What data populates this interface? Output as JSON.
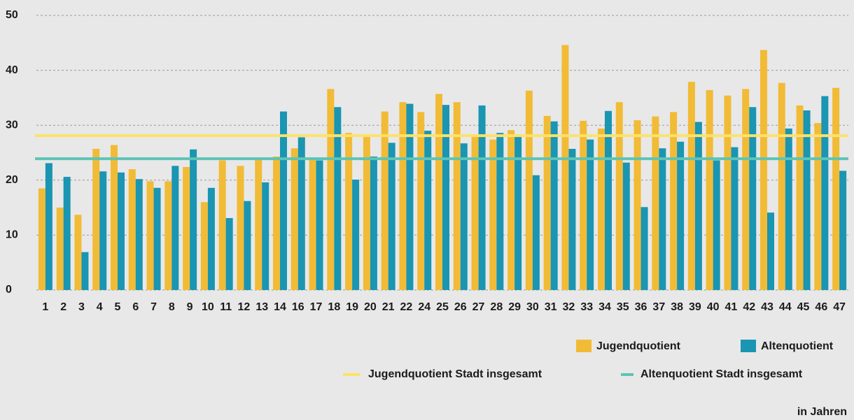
{
  "chart_data": {
    "type": "bar",
    "categories": [
      "1",
      "2",
      "3",
      "4",
      "5",
      "6",
      "7",
      "8",
      "9",
      "10",
      "11",
      "12",
      "13",
      "14",
      "16",
      "17",
      "18",
      "19",
      "20",
      "21",
      "22",
      "24",
      "25",
      "26",
      "27",
      "28",
      "29",
      "30",
      "31",
      "32",
      "33",
      "34",
      "35",
      "36",
      "37",
      "38",
      "39",
      "40",
      "41",
      "42",
      "43",
      "44",
      "45",
      "46",
      "47"
    ],
    "series": [
      {
        "name": "Jugendquotient",
        "color": "#f2bb36",
        "values": [
          18.5,
          15.0,
          13.7,
          25.7,
          26.4,
          22.0,
          19.8,
          19.8,
          22.4,
          16.0,
          23.6,
          22.6,
          23.7,
          24.3,
          25.8,
          24.0,
          36.6,
          28.6,
          28.0,
          32.5,
          34.2,
          32.4,
          35.7,
          34.2,
          28.0,
          27.4,
          29.1,
          36.3,
          31.7,
          44.6,
          30.8,
          29.4,
          34.2,
          30.9,
          31.6,
          32.4,
          37.9,
          36.4,
          35.4,
          36.6,
          43.7,
          37.7,
          33.6,
          30.4,
          36.8
        ]
      },
      {
        "name": "Altenquotient",
        "color": "#1a95b2",
        "values": [
          23.1,
          20.6,
          6.9,
          21.6,
          21.4,
          20.2,
          18.6,
          22.6,
          25.6,
          18.6,
          13.1,
          16.2,
          19.6,
          32.5,
          27.8,
          23.6,
          33.3,
          20.1,
          24.3,
          26.8,
          33.9,
          29.0,
          33.7,
          26.7,
          33.6,
          28.6,
          27.9,
          20.9,
          30.7,
          25.7,
          27.4,
          32.6,
          23.2,
          15.1,
          25.8,
          27.0,
          30.6,
          23.6,
          26.0,
          33.3,
          14.1,
          29.4,
          32.7,
          35.3,
          21.7
        ]
      }
    ],
    "reference_lines": [
      {
        "name": "Jugendquotient Stadt insgesamt",
        "color": "#fde26a",
        "value": 28.1
      },
      {
        "name": "Altenquotient Stadt insgesamt",
        "color": "#5ec4b6",
        "value": 23.9
      }
    ],
    "note": "in Jahren",
    "ylim": [
      0,
      50
    ],
    "yticks": [
      0,
      10,
      20,
      30,
      40,
      50
    ],
    "grid": true
  }
}
